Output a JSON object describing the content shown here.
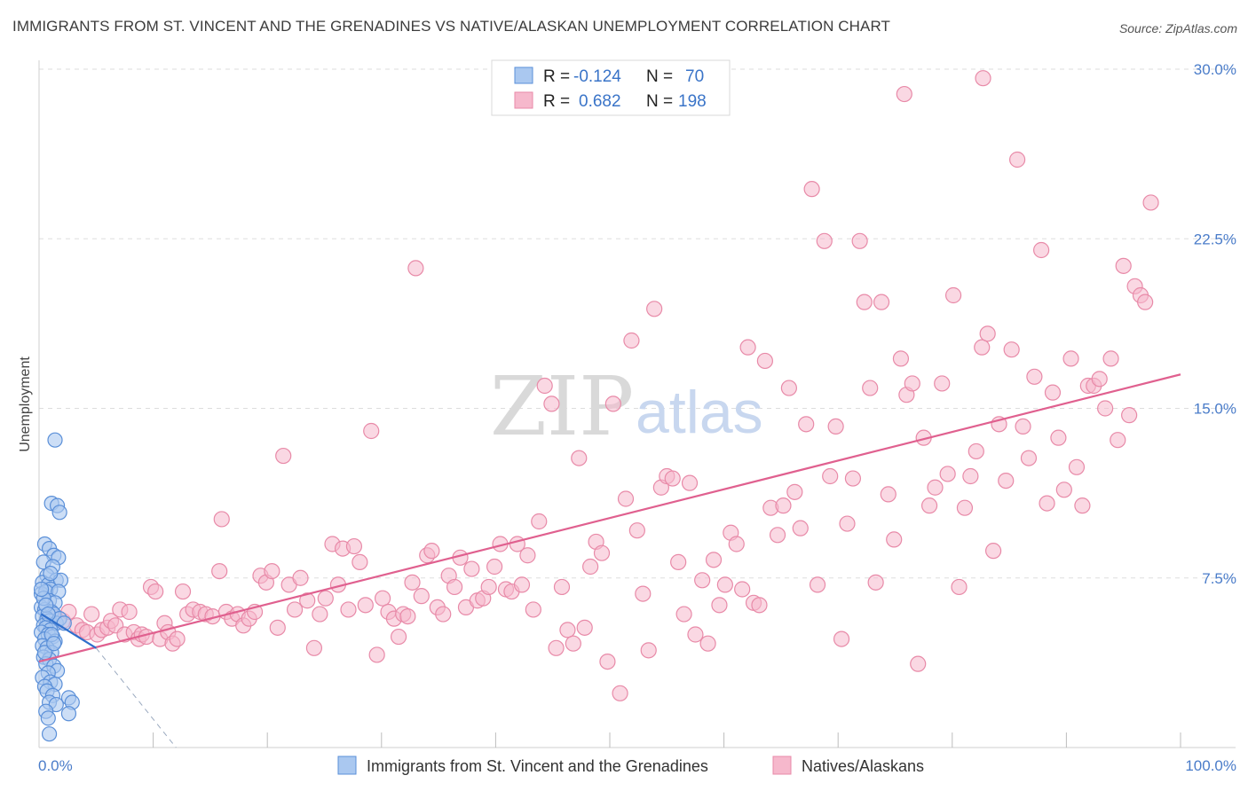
{
  "title": "IMMIGRANTS FROM ST. VINCENT AND THE GRENADINES VS NATIVE/ALASKAN UNEMPLOYMENT CORRELATION CHART",
  "source": "Source: ZipAtlas.com",
  "watermark": {
    "zip": "ZIP",
    "atlas": "atlas"
  },
  "colors": {
    "blue_fill": "#aac8f0",
    "blue_stroke": "#5a8fd8",
    "blue_line": "#2f6fcc",
    "pink_fill": "#f6b8cc",
    "pink_stroke": "#e88aa8",
    "pink_line": "#e0608f",
    "grid": "#dddddd",
    "axis_text": "#4a7cc9"
  },
  "legend_top": {
    "rows": [
      {
        "r_label": "R =",
        "r_value": "-0.124",
        "n_label": "N =",
        "n_value": "70"
      },
      {
        "r_label": "R =",
        "r_value": "0.682",
        "n_label": "N =",
        "n_value": "198"
      }
    ]
  },
  "legend_bottom": [
    {
      "label": "Immigrants from St. Vincent and the Grenadines"
    },
    {
      "label": "Natives/Alaskans"
    }
  ],
  "chart_data": {
    "type": "scatter",
    "title": "IMMIGRANTS FROM ST. VINCENT AND THE GRENADINES VS NATIVE/ALASKAN UNEMPLOYMENT CORRELATION CHART",
    "xlabel": "",
    "ylabel": "Unemployment",
    "xlim": [
      0,
      100
    ],
    "ylim": [
      0,
      30
    ],
    "x_tick_labels": [
      "0.0%",
      "100.0%"
    ],
    "y_ticks": [
      7.5,
      15.0,
      22.5,
      30.0
    ],
    "y_tick_labels": [
      "7.5%",
      "15.0%",
      "22.5%",
      "30.0%"
    ],
    "grid": true,
    "legend_position": "top-center",
    "series": [
      {
        "name": "Immigrants from St. Vincent and the Grenadines",
        "r": -0.124,
        "n": 70,
        "trend_solid": [
          [
            0.2,
            5.9
          ],
          [
            5.0,
            4.4
          ]
        ],
        "trend_dashed": [
          [
            5.0,
            4.4
          ],
          [
            12.0,
            0.0
          ]
        ],
        "points": [
          [
            1.4,
            13.6
          ],
          [
            1.1,
            10.8
          ],
          [
            1.6,
            10.7
          ],
          [
            1.8,
            10.4
          ],
          [
            0.5,
            9.0
          ],
          [
            0.9,
            8.8
          ],
          [
            1.3,
            8.5
          ],
          [
            1.7,
            8.4
          ],
          [
            0.4,
            8.2
          ],
          [
            1.2,
            8.0
          ],
          [
            0.7,
            7.6
          ],
          [
            1.5,
            7.4
          ],
          [
            0.3,
            7.3
          ],
          [
            0.8,
            7.2
          ],
          [
            1.9,
            7.4
          ],
          [
            1.0,
            7.0
          ],
          [
            0.2,
            6.8
          ],
          [
            0.6,
            6.9
          ],
          [
            1.7,
            6.9
          ],
          [
            0.9,
            6.5
          ],
          [
            1.4,
            6.4
          ],
          [
            0.2,
            6.2
          ],
          [
            0.5,
            6.1
          ],
          [
            1.1,
            6.0
          ],
          [
            1.3,
            5.9
          ],
          [
            0.3,
            5.8
          ],
          [
            0.7,
            5.7
          ],
          [
            0.9,
            5.6
          ],
          [
            1.5,
            5.5
          ],
          [
            0.4,
            5.4
          ],
          [
            0.6,
            5.3
          ],
          [
            1.0,
            5.2
          ],
          [
            0.2,
            5.1
          ],
          [
            0.8,
            5.0
          ],
          [
            1.2,
            4.9
          ],
          [
            0.5,
            4.8
          ],
          [
            1.4,
            4.7
          ],
          [
            0.3,
            4.5
          ],
          [
            0.7,
            4.4
          ],
          [
            1.1,
            4.2
          ],
          [
            0.4,
            4.0
          ],
          [
            0.9,
            3.9
          ],
          [
            0.6,
            3.7
          ],
          [
            1.3,
            3.6
          ],
          [
            1.6,
            3.4
          ],
          [
            0.8,
            3.3
          ],
          [
            0.3,
            3.1
          ],
          [
            1.0,
            2.9
          ],
          [
            1.4,
            2.8
          ],
          [
            0.5,
            2.7
          ],
          [
            0.7,
            2.5
          ],
          [
            2.6,
            2.2
          ],
          [
            1.2,
            2.3
          ],
          [
            2.9,
            2.0
          ],
          [
            0.9,
            2.0
          ],
          [
            1.5,
            1.9
          ],
          [
            0.6,
            1.6
          ],
          [
            2.6,
            1.5
          ],
          [
            0.8,
            1.3
          ],
          [
            0.9,
            0.6
          ],
          [
            1.8,
            5.7
          ],
          [
            2.2,
            5.5
          ],
          [
            0.4,
            6.6
          ],
          [
            1.0,
            7.7
          ],
          [
            0.6,
            6.3
          ],
          [
            1.1,
            5.0
          ],
          [
            0.2,
            7.0
          ],
          [
            0.5,
            4.2
          ],
          [
            1.3,
            4.6
          ],
          [
            0.8,
            5.9
          ]
        ]
      },
      {
        "name": "Natives/Alaskans",
        "r": 0.682,
        "n": 198,
        "trend": [
          [
            0.0,
            3.8
          ],
          [
            100.0,
            16.5
          ]
        ],
        "points": [
          [
            1.2,
            5.8
          ],
          [
            2.1,
            5.6
          ],
          [
            2.6,
            6.0
          ],
          [
            3.3,
            5.4
          ],
          [
            3.8,
            5.2
          ],
          [
            4.2,
            5.1
          ],
          [
            4.6,
            5.9
          ],
          [
            5.1,
            5.0
          ],
          [
            5.5,
            5.2
          ],
          [
            6.0,
            5.3
          ],
          [
            6.3,
            5.6
          ],
          [
            6.7,
            5.4
          ],
          [
            7.1,
            6.1
          ],
          [
            7.5,
            5.0
          ],
          [
            7.9,
            6.0
          ],
          [
            8.3,
            5.1
          ],
          [
            8.7,
            4.8
          ],
          [
            9.0,
            5.0
          ],
          [
            9.4,
            4.9
          ],
          [
            9.8,
            7.1
          ],
          [
            10.2,
            6.9
          ],
          [
            10.6,
            4.8
          ],
          [
            11.0,
            5.5
          ],
          [
            11.3,
            5.1
          ],
          [
            11.7,
            4.6
          ],
          [
            12.1,
            4.8
          ],
          [
            12.6,
            6.9
          ],
          [
            13.0,
            5.9
          ],
          [
            13.5,
            6.1
          ],
          [
            14.1,
            6.0
          ],
          [
            14.6,
            5.9
          ],
          [
            15.2,
            5.8
          ],
          [
            15.8,
            7.8
          ],
          [
            16.0,
            10.1
          ],
          [
            16.4,
            6.0
          ],
          [
            16.9,
            5.7
          ],
          [
            17.4,
            5.9
          ],
          [
            17.9,
            5.4
          ],
          [
            18.4,
            5.7
          ],
          [
            18.9,
            6.0
          ],
          [
            19.4,
            7.6
          ],
          [
            19.9,
            7.3
          ],
          [
            20.4,
            7.8
          ],
          [
            20.9,
            5.3
          ],
          [
            21.4,
            12.9
          ],
          [
            21.9,
            7.2
          ],
          [
            22.4,
            6.1
          ],
          [
            22.9,
            7.5
          ],
          [
            23.5,
            6.5
          ],
          [
            24.1,
            4.4
          ],
          [
            24.6,
            5.9
          ],
          [
            25.1,
            6.6
          ],
          [
            25.7,
            9.0
          ],
          [
            26.2,
            7.2
          ],
          [
            26.6,
            8.8
          ],
          [
            27.1,
            6.1
          ],
          [
            27.6,
            8.9
          ],
          [
            28.1,
            8.2
          ],
          [
            28.6,
            6.3
          ],
          [
            29.1,
            14.0
          ],
          [
            29.6,
            4.1
          ],
          [
            30.1,
            6.6
          ],
          [
            30.6,
            6.0
          ],
          [
            31.1,
            5.7
          ],
          [
            31.5,
            4.9
          ],
          [
            31.9,
            5.9
          ],
          [
            32.3,
            5.8
          ],
          [
            32.7,
            7.3
          ],
          [
            33.0,
            21.2
          ],
          [
            33.5,
            6.7
          ],
          [
            34.0,
            8.5
          ],
          [
            34.4,
            8.7
          ],
          [
            34.9,
            6.2
          ],
          [
            35.4,
            5.9
          ],
          [
            35.9,
            7.6
          ],
          [
            36.4,
            7.1
          ],
          [
            36.9,
            8.4
          ],
          [
            37.4,
            6.2
          ],
          [
            37.9,
            7.9
          ],
          [
            38.4,
            6.5
          ],
          [
            38.9,
            6.6
          ],
          [
            39.4,
            7.1
          ],
          [
            39.9,
            8.0
          ],
          [
            40.4,
            9.0
          ],
          [
            40.9,
            7.0
          ],
          [
            41.4,
            6.9
          ],
          [
            41.9,
            9.0
          ],
          [
            42.3,
            7.2
          ],
          [
            42.8,
            8.5
          ],
          [
            43.3,
            6.1
          ],
          [
            43.8,
            10.0
          ],
          [
            44.3,
            16.0
          ],
          [
            44.9,
            15.2
          ],
          [
            45.3,
            4.4
          ],
          [
            45.8,
            7.1
          ],
          [
            46.3,
            5.2
          ],
          [
            46.8,
            4.6
          ],
          [
            47.3,
            12.8
          ],
          [
            47.8,
            5.3
          ],
          [
            48.3,
            8.0
          ],
          [
            48.8,
            9.1
          ],
          [
            49.3,
            8.6
          ],
          [
            49.8,
            3.8
          ],
          [
            50.3,
            15.2
          ],
          [
            50.9,
            2.4
          ],
          [
            51.4,
            11.0
          ],
          [
            51.9,
            18.0
          ],
          [
            52.4,
            9.6
          ],
          [
            52.9,
            6.8
          ],
          [
            53.4,
            4.3
          ],
          [
            53.9,
            19.4
          ],
          [
            54.5,
            11.5
          ],
          [
            55.0,
            12.0
          ],
          [
            55.5,
            11.9
          ],
          [
            56.0,
            8.2
          ],
          [
            56.5,
            5.9
          ],
          [
            57.0,
            11.7
          ],
          [
            57.5,
            5.0
          ],
          [
            58.1,
            7.4
          ],
          [
            58.6,
            4.6
          ],
          [
            59.1,
            8.3
          ],
          [
            59.6,
            6.3
          ],
          [
            60.1,
            7.2
          ],
          [
            60.6,
            9.5
          ],
          [
            61.1,
            9.0
          ],
          [
            61.6,
            7.0
          ],
          [
            62.1,
            17.7
          ],
          [
            62.6,
            6.4
          ],
          [
            63.1,
            6.3
          ],
          [
            63.6,
            17.1
          ],
          [
            64.1,
            10.6
          ],
          [
            64.7,
            9.4
          ],
          [
            65.2,
            10.7
          ],
          [
            65.7,
            15.9
          ],
          [
            66.2,
            11.3
          ],
          [
            66.7,
            9.7
          ],
          [
            67.2,
            14.3
          ],
          [
            67.7,
            24.7
          ],
          [
            68.2,
            7.2
          ],
          [
            68.8,
            22.4
          ],
          [
            69.3,
            12.0
          ],
          [
            69.8,
            14.2
          ],
          [
            70.3,
            4.8
          ],
          [
            70.8,
            9.9
          ],
          [
            71.3,
            11.9
          ],
          [
            71.9,
            22.4
          ],
          [
            72.3,
            19.7
          ],
          [
            72.8,
            15.9
          ],
          [
            73.3,
            7.3
          ],
          [
            73.8,
            19.7
          ],
          [
            74.4,
            11.2
          ],
          [
            74.9,
            9.2
          ],
          [
            75.5,
            17.2
          ],
          [
            76.0,
            15.6
          ],
          [
            76.5,
            16.1
          ],
          [
            77.0,
            3.7
          ],
          [
            77.5,
            13.7
          ],
          [
            78.0,
            10.7
          ],
          [
            78.5,
            11.5
          ],
          [
            79.1,
            16.1
          ],
          [
            79.6,
            12.1
          ],
          [
            80.1,
            20.0
          ],
          [
            80.6,
            7.1
          ],
          [
            81.1,
            10.6
          ],
          [
            81.6,
            12.0
          ],
          [
            82.1,
            13.1
          ],
          [
            82.6,
            17.7
          ],
          [
            83.1,
            18.3
          ],
          [
            83.6,
            8.7
          ],
          [
            84.1,
            14.3
          ],
          [
            84.7,
            11.8
          ],
          [
            85.2,
            17.6
          ],
          [
            85.7,
            26.0
          ],
          [
            86.2,
            14.2
          ],
          [
            86.7,
            12.8
          ],
          [
            87.2,
            16.4
          ],
          [
            87.8,
            22.0
          ],
          [
            88.3,
            10.8
          ],
          [
            88.8,
            15.7
          ],
          [
            89.3,
            13.7
          ],
          [
            89.8,
            11.4
          ],
          [
            90.4,
            17.2
          ],
          [
            90.9,
            12.4
          ],
          [
            91.4,
            10.7
          ],
          [
            91.9,
            16.0
          ],
          [
            92.4,
            16.0
          ],
          [
            92.9,
            16.3
          ],
          [
            93.4,
            15.0
          ],
          [
            93.9,
            17.2
          ],
          [
            94.5,
            13.6
          ],
          [
            95.0,
            21.3
          ],
          [
            95.5,
            14.7
          ],
          [
            96.0,
            20.4
          ],
          [
            96.5,
            20.0
          ],
          [
            96.9,
            19.7
          ],
          [
            97.4,
            24.1
          ],
          [
            75.8,
            28.9
          ],
          [
            82.7,
            29.6
          ]
        ]
      }
    ]
  }
}
